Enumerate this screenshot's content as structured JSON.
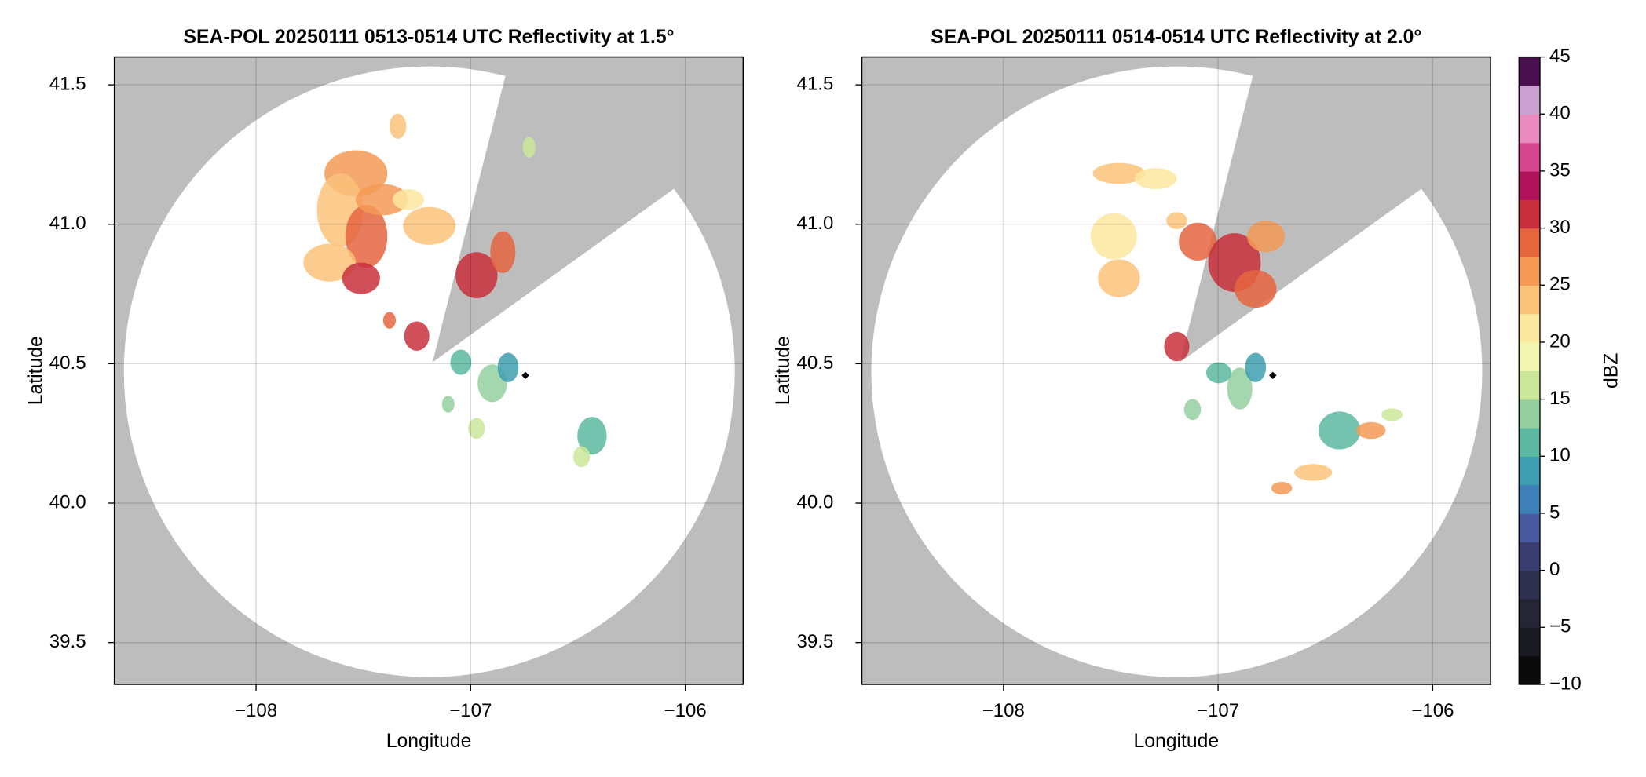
{
  "chart_data": [
    {
      "type": "radar",
      "title": "SEA-POL 20250111 0513-0514 UTC Reflectivity at 1.5°",
      "xlabel": "Longitude",
      "ylabel": "Latitude",
      "xlim": [
        -108.66,
        -105.73
      ],
      "ylim": [
        39.35,
        41.6
      ],
      "xticks": [
        {
          "value": -108,
          "label": "−108"
        },
        {
          "value": -107,
          "label": "−107"
        },
        {
          "value": -106,
          "label": "−106"
        }
      ],
      "yticks": [
        39.5,
        {
          "value": 40,
          "label": "40.0"
        },
        40.5,
        {
          "value": 41,
          "label": "41.0"
        },
        41.5
      ],
      "grid": true,
      "background": "#bdbdbd"
    },
    {
      "type": "radar",
      "title": "SEA-POL 20250111 0514-0514 UTC Reflectivity at 2.0°",
      "xlabel": "Longitude",
      "ylabel": "Latitude",
      "xlim": [
        -108.66,
        -105.73
      ],
      "ylim": [
        39.35,
        41.6
      ],
      "xticks": [
        {
          "value": -108,
          "label": "−108"
        },
        {
          "value": -107,
          "label": "−107"
        },
        {
          "value": -106,
          "label": "−106"
        }
      ],
      "yticks": [
        39.5,
        {
          "value": 40,
          "label": "40.0"
        },
        40.5,
        {
          "value": 41,
          "label": "41.0"
        },
        41.5
      ],
      "grid": true,
      "background": "#bdbdbd"
    },
    {
      "type": "colorbar",
      "label": "dBZ",
      "clim": [
        -10,
        45
      ],
      "ticks": [
        {
          "value": -10,
          "label": "−10"
        },
        {
          "value": -5,
          "label": "−5"
        },
        0,
        5,
        10,
        15,
        20,
        25,
        30,
        35,
        40,
        45
      ],
      "colors": [
        "#0a0a0a",
        "#1a1a22",
        "#252535",
        "#2f3050",
        "#3a3d70",
        "#4a5a9e",
        "#3f7fb8",
        "#3f9fb0",
        "#5cb8a0",
        "#94d0a0",
        "#cbe89a",
        "#f2f6b0",
        "#fde8a0",
        "#fbc27a",
        "#f59a55",
        "#e5653f",
        "#c8303c",
        "#b0125a",
        "#d4458e",
        "#e98bbf",
        "#c9a0d0",
        "#4a0f4f"
      ]
    }
  ]
}
